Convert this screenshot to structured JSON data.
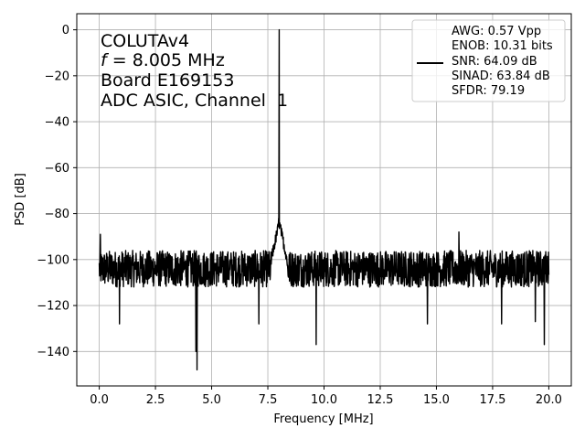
{
  "chart_data": {
    "type": "line",
    "title": "",
    "xlabel": "Frequency [MHz]",
    "ylabel": "PSD [dB]",
    "xlim": [
      -1.0,
      21.0
    ],
    "ylim": [
      -155,
      7
    ],
    "grid": true,
    "xticks": [
      0.0,
      2.5,
      5.0,
      7.5,
      10.0,
      12.5,
      15.0,
      17.5,
      20.0
    ],
    "xtick_labels": [
      "0.0",
      "2.5",
      "5.0",
      "7.5",
      "10.0",
      "12.5",
      "15.0",
      "17.5",
      "20.0"
    ],
    "yticks": [
      0,
      -20,
      -40,
      -60,
      -80,
      -100,
      -120,
      -140
    ],
    "ytick_labels": [
      "0",
      "−20",
      "−40",
      "−60",
      "−80",
      "−100",
      "−120",
      "−140"
    ],
    "annotation": {
      "line1": "COLUTAv4",
      "line2_var": "f",
      "line2_rest": " = 8.005 MHz",
      "line3": "Board E169153",
      "line4": "ADC ASIC, Channel  1"
    },
    "legend": {
      "placement": "top-right",
      "lines": [
        "AWG: 0.57 Vpp",
        "ENOB: 10.31 bits",
        "SNR: 64.09 dB",
        "SINAD: 63.84 dB",
        "SFDR: 79.19"
      ]
    },
    "series": [
      {
        "color": "#000000",
        "noise_floor_db": -104,
        "noise_spread_db": 8,
        "x_range": [
          0.0,
          20.0
        ],
        "peaks": [
          {
            "x": 8.005,
            "y": 0
          },
          {
            "x": 7.98,
            "y": -82
          },
          {
            "x": 8.03,
            "y": -84
          },
          {
            "x": 16.0,
            "y": -88
          },
          {
            "x": 4.35,
            "y": -148
          },
          {
            "x": 4.3,
            "y": -140
          },
          {
            "x": 9.65,
            "y": -137
          },
          {
            "x": 19.8,
            "y": -137
          },
          {
            "x": 0.05,
            "y": -89
          }
        ],
        "dips": [
          {
            "x": 0.9,
            "y": -128
          },
          {
            "x": 7.1,
            "y": -128
          },
          {
            "x": 14.6,
            "y": -128
          },
          {
            "x": 17.9,
            "y": -128
          },
          {
            "x": 19.4,
            "y": -127
          }
        ]
      }
    ]
  }
}
